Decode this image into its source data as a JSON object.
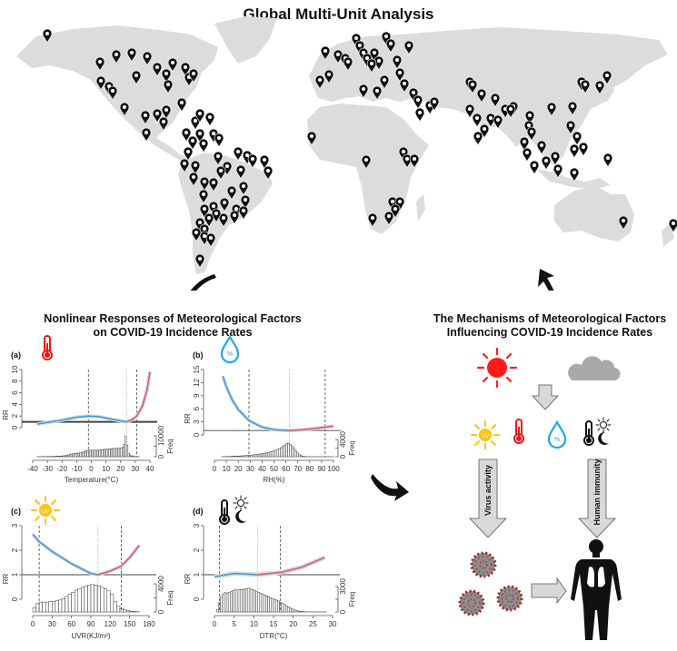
{
  "main_title": "Global Multi-Unit Analysis",
  "left_section": {
    "title_line1": "Nonlinear Responses of Meteorological Factors",
    "title_line2": "on COVID-19 Incidence Rates"
  },
  "right_section": {
    "title_line1": "The Mechanisms of Meteorological Factors",
    "title_line2": "Influencing COVID-19 Incidence Rates",
    "left_arrow_label": "Virus activity",
    "right_arrow_label": "Human immunity",
    "icons": [
      "sun-icon",
      "cloud-icon",
      "uv-sun-icon",
      "thermometer-icon",
      "humidity-drop-icon",
      "diurnal-temperature-icon",
      "virus-icon",
      "human-body-icon"
    ],
    "uv_icon_text": "UV",
    "humidity_icon_text": "%"
  },
  "colors": {
    "low": "#3a9ad9",
    "high": "#d9536b",
    "ci": "#d9d9d9",
    "sun": "#ff1a1a",
    "uv": "#ffc20e",
    "drop": "#1ca9e6",
    "map": "#dcdcdc"
  },
  "chart_data": [
    {
      "type": "line",
      "panel": "(a)",
      "xlabel": "Temperature(°C)",
      "ylabel": "RR",
      "freq_label": "Freq",
      "xlim": [
        -40,
        40
      ],
      "xticks": [
        -40,
        -30,
        -20,
        -10,
        0,
        10,
        20,
        30,
        40
      ],
      "ylim": [
        0,
        10
      ],
      "yticks": [
        0,
        2,
        4,
        6,
        8,
        10
      ],
      "freq_max": 10000,
      "freq_ticks": [
        0,
        10000
      ],
      "dashed": [
        -2,
        31
      ],
      "dotted": [
        24
      ],
      "low_series": [
        [
          -37,
          0.6
        ],
        [
          -30,
          0.9
        ],
        [
          -20,
          1.3
        ],
        [
          -10,
          1.8
        ],
        [
          -2,
          2.0
        ],
        [
          5,
          1.9
        ],
        [
          15,
          1.4
        ],
        [
          24,
          1.0
        ]
      ],
      "high_series": [
        [
          24,
          1.0
        ],
        [
          28,
          1.4
        ],
        [
          31,
          2.0
        ],
        [
          35,
          3.8
        ],
        [
          38,
          6.5
        ],
        [
          40,
          9.6
        ]
      ],
      "hist": {
        "start": -37,
        "width": 1,
        "counts": [
          50,
          50,
          60,
          60,
          70,
          80,
          90,
          100,
          110,
          120,
          140,
          160,
          180,
          200,
          250,
          300,
          350,
          400,
          450,
          500,
          700,
          900,
          1100,
          1300,
          1400,
          1500,
          1600,
          1700,
          1800,
          1900,
          2000,
          2200,
          2500,
          2800,
          3000,
          3100,
          3100,
          3100,
          3100,
          3100,
          3100,
          3100,
          3200,
          3300,
          3400,
          3500,
          3600,
          3600,
          3600,
          3700,
          3800,
          3900,
          4000,
          4000,
          4000,
          4000,
          4200,
          4200,
          4500,
          6000,
          10000,
          5500,
          1500,
          800,
          400,
          200,
          100,
          60,
          40,
          20
        ]
      }
    },
    {
      "type": "line",
      "panel": "(b)",
      "xlabel": "RH(%)",
      "ylabel": "RR",
      "freq_label": "Freq",
      "xlim": [
        0,
        100
      ],
      "xticks": [
        0,
        10,
        20,
        30,
        40,
        50,
        60,
        70,
        80,
        90,
        100
      ],
      "ylim": [
        0,
        15
      ],
      "yticks": [
        0,
        3,
        6,
        9,
        12,
        15
      ],
      "freq_max": 4000,
      "freq_ticks": [
        0,
        4000
      ],
      "dashed": [
        29,
        93
      ],
      "dotted": [
        63
      ],
      "low_series": [
        [
          7,
          13.5
        ],
        [
          10,
          11
        ],
        [
          15,
          8
        ],
        [
          20,
          5.8
        ],
        [
          29,
          3.3
        ],
        [
          40,
          1.8
        ],
        [
          50,
          1.2
        ],
        [
          63,
          1.0
        ]
      ],
      "high_series": [
        [
          63,
          1.0
        ],
        [
          75,
          1.2
        ],
        [
          85,
          1.5
        ],
        [
          93,
          1.8
        ],
        [
          100,
          2.0
        ]
      ],
      "hist": {
        "start": 6,
        "width": 1.5,
        "counts": [
          20,
          30,
          40,
          50,
          60,
          80,
          100,
          120,
          140,
          160,
          180,
          200,
          230,
          260,
          300,
          340,
          380,
          420,
          470,
          520,
          580,
          640,
          700,
          780,
          860,
          950,
          1050,
          1150,
          1250,
          1400,
          1550,
          1700,
          1900,
          2100,
          2400,
          2700,
          3000,
          3100,
          2900,
          2500,
          2000,
          1400,
          900,
          500,
          250,
          120,
          60,
          30,
          20,
          10,
          10,
          10,
          10,
          10,
          10,
          10,
          10,
          10,
          10,
          10,
          10,
          10,
          10
        ]
      }
    },
    {
      "type": "line",
      "panel": "(c)",
      "xlabel": "UVR(KJ/m²)",
      "ylabel": "RR",
      "freq_label": "Freq",
      "xlim": [
        0,
        180
      ],
      "xticks": [
        0,
        30,
        60,
        90,
        120,
        150,
        180
      ],
      "ylim": [
        0,
        3
      ],
      "yticks": [
        0,
        1,
        2,
        3
      ],
      "freq_max": 4000,
      "freq_ticks": [
        0,
        4000
      ],
      "dashed": [
        10,
        137
      ],
      "dotted": [
        101
      ],
      "low_series": [
        [
          0,
          2.65
        ],
        [
          10,
          2.35
        ],
        [
          30,
          1.95
        ],
        [
          60,
          1.45
        ],
        [
          90,
          1.05
        ],
        [
          101,
          1.0
        ]
      ],
      "high_series": [
        [
          101,
          1.0
        ],
        [
          120,
          1.15
        ],
        [
          137,
          1.35
        ],
        [
          150,
          1.7
        ],
        [
          165,
          2.2
        ]
      ],
      "hist": {
        "start": 0,
        "width": 5,
        "counts": [
          600,
          1200,
          1400,
          1400,
          1400,
          1500,
          1500,
          1600,
          1700,
          1900,
          2200,
          2500,
          2800,
          3100,
          3300,
          3500,
          3700,
          3800,
          3900,
          3800,
          3700,
          3500,
          3300,
          3000,
          2500,
          1500,
          800,
          500,
          300,
          200,
          100,
          50,
          30
        ]
      }
    },
    {
      "type": "line",
      "panel": "(d)",
      "xlabel": "DTR(°C)",
      "ylabel": "RR",
      "freq_label": "Freq",
      "xlim": [
        0,
        30
      ],
      "xticks": [
        0,
        5,
        10,
        15,
        20,
        25,
        30
      ],
      "ylim": [
        0,
        3
      ],
      "yticks": [
        0,
        1,
        2,
        3
      ],
      "freq_max": 3000,
      "freq_ticks": [
        0,
        3000
      ],
      "dashed": [
        1.3,
        16.7
      ],
      "dotted": [
        11
      ],
      "low_series": [
        [
          0,
          0.92
        ],
        [
          2,
          0.97
        ],
        [
          5,
          1.05
        ],
        [
          8,
          1.03
        ],
        [
          11,
          1.0
        ]
      ],
      "high_series": [
        [
          11,
          1.0
        ],
        [
          14,
          1.05
        ],
        [
          17,
          1.1
        ],
        [
          22,
          1.3
        ],
        [
          28,
          1.7
        ]
      ],
      "hist": {
        "start": 0.5,
        "width": 0.5,
        "counts": [
          300,
          1100,
          1800,
          2100,
          2300,
          2200,
          2300,
          2400,
          2500,
          2600,
          2600,
          2600,
          2650,
          2650,
          2700,
          2750,
          2800,
          2700,
          2650,
          2500,
          2400,
          2300,
          2200,
          2100,
          2000,
          1900,
          1800,
          1700,
          1600,
          1500,
          1400,
          1300,
          1150,
          1000,
          900,
          750,
          600,
          450,
          350,
          250,
          180,
          120,
          80,
          50,
          30,
          20,
          10,
          10,
          10,
          10,
          10,
          10,
          10,
          10,
          10,
          10
        ]
      }
    }
  ]
}
